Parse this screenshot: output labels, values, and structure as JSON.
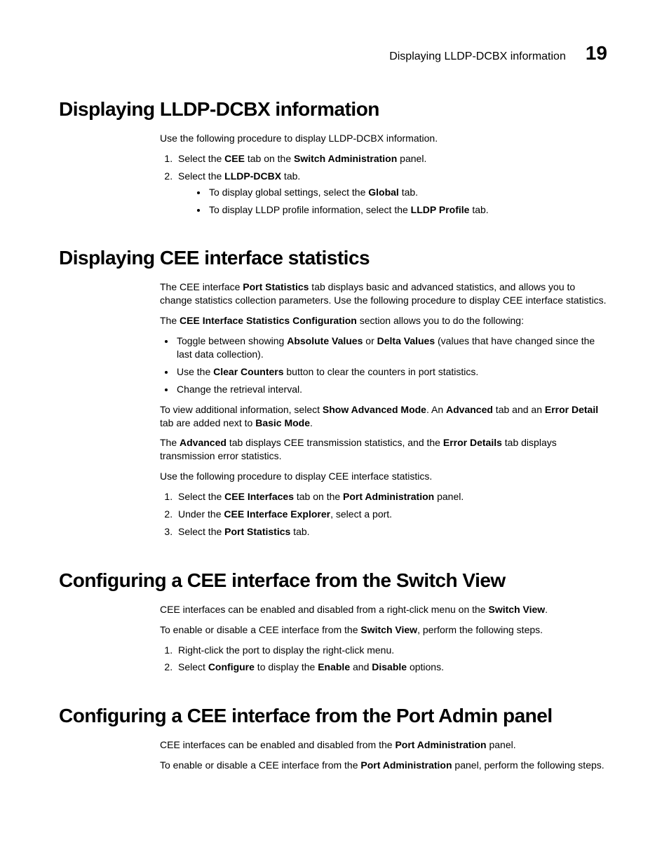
{
  "header": {
    "running_title": "Displaying LLDP-DCBX information",
    "chapter_number": "19"
  },
  "sections": [
    {
      "title": "Displaying LLDP-DCBX information",
      "intro": "Use the following procedure to display LLDP-DCBX information.",
      "steps": [
        {
          "pre": "Select the ",
          "b1": "CEE",
          "mid": " tab on the ",
          "b2": "Switch Administration",
          "post": " panel."
        },
        {
          "pre": "Select the ",
          "b1": "LLDP-DCBX",
          "post": " tab."
        }
      ],
      "subbullets": [
        {
          "pre": "To display global settings, select the ",
          "b1": "Global",
          "post": " tab."
        },
        {
          "pre": "To display LLDP profile information, select the ",
          "b1": "LLDP Profile",
          "post": " tab."
        }
      ]
    },
    {
      "title": "Displaying CEE interface statistics",
      "para1_pre": "The CEE interface ",
      "para1_b": "Port Statistics",
      "para1_post": " tab displays basic and advanced statistics, and allows you to change statistics collection parameters. Use the following procedure to display CEE interface statistics.",
      "para2_pre": "The ",
      "para2_b": "CEE Interface Statistics Configuration",
      "para2_post": " section allows you to do the following:",
      "bullets": [
        {
          "pre": "Toggle between showing ",
          "b1": "Absolute Values",
          "mid": " or ",
          "b2": "Delta Values",
          "post": " (values that have changed since the last data collection)."
        },
        {
          "pre": "Use the ",
          "b1": "Clear Counters",
          "post": " button to clear the counters in port statistics."
        },
        {
          "pre": "Change the retrieval interval."
        }
      ],
      "para3_pre": "To view additional information, select ",
      "para3_b1": "Show Advanced Mode",
      "para3_mid1": ". An ",
      "para3_b2": "Advanced",
      "para3_mid2": " tab and an ",
      "para3_b3": "Error Detail",
      "para3_mid3": " tab are added next to ",
      "para3_b4": "Basic Mode",
      "para3_post": ".",
      "para4_pre": "The ",
      "para4_b1": "Advanced",
      "para4_mid1": " tab displays CEE transmission statistics, and the ",
      "para4_b2": "Error Details",
      "para4_post": " tab displays transmission error statistics.",
      "para5": "Use the following procedure to display CEE interface statistics.",
      "steps": [
        {
          "pre": "Select the ",
          "b1": "CEE Interfaces",
          "mid": " tab on the ",
          "b2": "Port Administration",
          "post": " panel."
        },
        {
          "pre": "Under the ",
          "b1": "CEE Interface Explorer",
          "post": ", select a port."
        },
        {
          "pre": "Select the ",
          "b1": "Port Statistics",
          "post": " tab."
        }
      ]
    },
    {
      "title": "Configuring a CEE interface from the Switch View",
      "para1_pre": "CEE interfaces can be enabled and disabled from a right-click menu on the ",
      "para1_b": "Switch View",
      "para1_post": ".",
      "para2_pre": "To enable or disable a CEE interface from the ",
      "para2_b": "Switch View",
      "para2_post": ", perform the following steps.",
      "steps": [
        {
          "pre": "Right-click the port to display the right-click menu."
        },
        {
          "pre": "Select ",
          "b1": "Configure",
          "mid": " to display the ",
          "b2": "Enable",
          "mid2": " and ",
          "b3": "Disable",
          "post": " options."
        }
      ]
    },
    {
      "title": "Configuring a CEE interface from the Port Admin panel",
      "para1_pre": "CEE interfaces can be enabled and disabled from the ",
      "para1_b": "Port Administration",
      "para1_post": " panel.",
      "para2_pre": "To enable or disable a CEE interface from the ",
      "para2_b": "Port Administration",
      "para2_post": " panel, perform the following steps."
    }
  ]
}
